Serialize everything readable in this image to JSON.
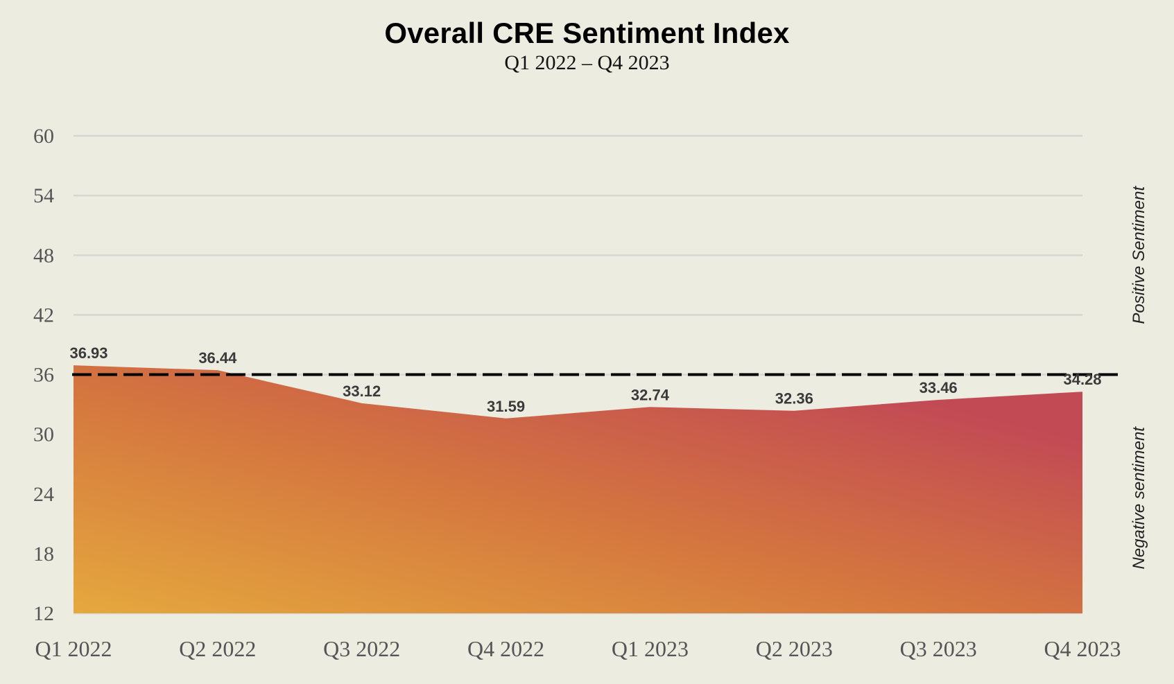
{
  "chart_data": {
    "type": "area",
    "title": "Overall CRE Sentiment Index",
    "subtitle": "Q1 2022 – Q4 2023",
    "categories": [
      "Q1 2022",
      "Q2 2022",
      "Q3 2022",
      "Q4 2022",
      "Q1 2023",
      "Q2 2023",
      "Q3 2023",
      "Q4 2023"
    ],
    "series": [
      {
        "name": "Overall CRE Sentiment Index",
        "values": [
          36.93,
          36.44,
          33.12,
          31.59,
          32.74,
          32.36,
          33.46,
          34.28
        ],
        "data_labels": [
          "36.93",
          "36.44",
          "33.12",
          "31.59",
          "32.74",
          "32.36",
          "33.46",
          "34.28"
        ]
      }
    ],
    "xlabel": "",
    "ylabel": "",
    "ylim": [
      12,
      60
    ],
    "yticks": [
      12,
      18,
      24,
      30,
      36,
      42,
      48,
      54,
      60
    ],
    "ytick_labels": [
      "12",
      "18",
      "24",
      "30",
      "36",
      "42",
      "48",
      "54",
      "60"
    ],
    "grid": true,
    "reference_line": {
      "value": 36,
      "style": "dashed",
      "color": "#000000"
    },
    "annotations": {
      "above": "Positive Sentiment",
      "below": "Negative sentiment"
    },
    "colors": {
      "background": "#edece1",
      "grid": "#d6d6d3",
      "gradient_start": "#e5a83e",
      "gradient_mid": "#d4763f",
      "gradient_end": "#c24a55"
    }
  }
}
